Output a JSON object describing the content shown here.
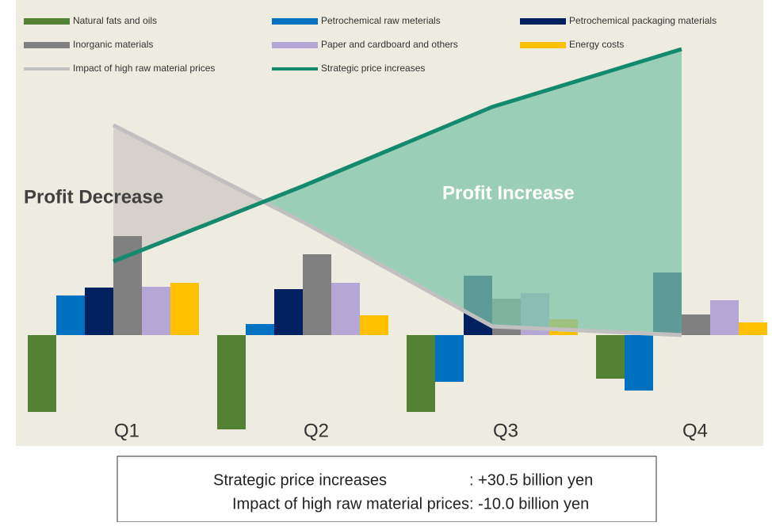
{
  "chart_data": {
    "type": "bar",
    "categories": [
      "Q1",
      "Q2",
      "Q3",
      "Q4"
    ],
    "series": [
      {
        "name": "Natural fats and oils",
        "color": "#548235",
        "values": [
          -97,
          -119,
          -97,
          -55
        ]
      },
      {
        "name": "Petrochemical raw meterials",
        "color": "#0070c0",
        "values": [
          50,
          14,
          -59,
          -70
        ]
      },
      {
        "name": "Petrochemical packaging materials",
        "color": "#002060",
        "values": [
          60,
          58,
          75,
          79
        ]
      },
      {
        "name": "Inorganic materials",
        "color": "#808080",
        "values": [
          125,
          102,
          46,
          26
        ]
      },
      {
        "name": "Paper and cardboard and others",
        "color": "#b4a7d6",
        "values": [
          61,
          66,
          53,
          44
        ]
      },
      {
        "name": "Energy costs",
        "color": "#ffc000",
        "values": [
          66,
          25,
          20,
          16
        ]
      },
      {
        "name": "Impact of high raw material prices",
        "type": "line",
        "color": "#c0c0c0",
        "values": [
          265,
          143,
          11,
          0
        ]
      },
      {
        "name": "Strategic price increases",
        "type": "line",
        "color": "#138a6d",
        "values": [
          93,
          188,
          288,
          361
        ]
      }
    ],
    "ylim": [
      -140,
      423
    ],
    "annotations": [
      "Profit Decrease",
      "Profit Increase"
    ],
    "summary": [
      {
        "label": "Strategic price increases",
        "value": ": +30.5 billion yen"
      },
      {
        "label": "Impact of high raw material prices",
        "value": ": -10.0 billion yen"
      }
    ]
  }
}
